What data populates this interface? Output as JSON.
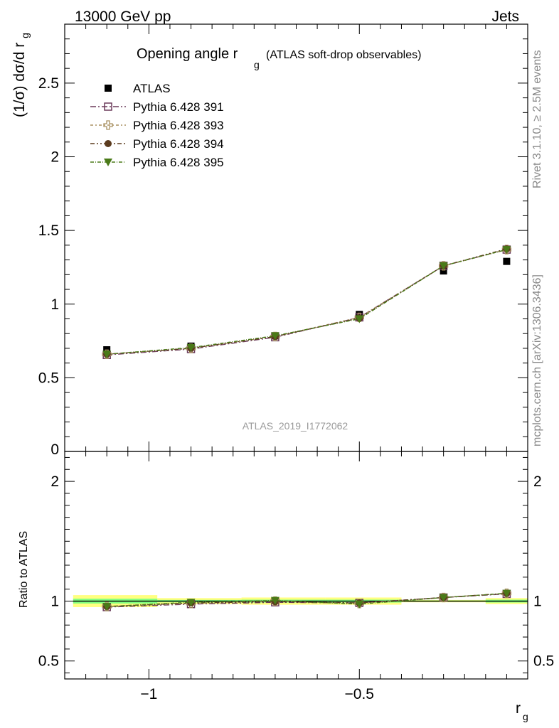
{
  "header": {
    "left": "13000 GeV pp",
    "right": "Jets"
  },
  "side": {
    "top": "Rivet 3.1.10, ≥ 2.5M events",
    "bottom": "mcplots.cern.ch [arXiv:1306.3436]"
  },
  "watermark": "ATLAS_2019_I1772062",
  "chart_data": [
    {
      "type": "scatter",
      "title": "Opening angle r",
      "title_sub": "g",
      "title_suffix": "(ATLAS soft-drop observables)",
      "ylabel": "(1/σ) dσ/d r",
      "ylabel_sub": "g",
      "xlim": [
        -1.2,
        -0.1
      ],
      "ylim": [
        0,
        2.9
      ],
      "yticks": [
        0.5,
        1,
        1.5,
        2,
        2.5
      ],
      "ytick_labels": [
        "0.5",
        "1",
        "1.5",
        "2",
        "2.5"
      ],
      "origin_label": "0",
      "x": [
        -1.1,
        -0.9,
        -0.7,
        -0.5,
        -0.3,
        -0.15
      ],
      "series": [
        {
          "name": "ATLAS",
          "color": "#000000",
          "marker": "filled-square",
          "values": [
            0.69,
            0.715,
            0.785,
            0.93,
            1.225,
            1.29
          ]
        },
        {
          "name": "Pythia 6.428 391",
          "color": "#6b3a5a",
          "marker": "open-square",
          "values": [
            0.655,
            0.695,
            0.775,
            0.91,
            1.26,
            1.37
          ]
        },
        {
          "name": "Pythia 6.428 393",
          "color": "#a89060",
          "marker": "open-cross",
          "values": [
            0.66,
            0.7,
            0.78,
            0.91,
            1.26,
            1.37
          ]
        },
        {
          "name": "Pythia 6.428 394",
          "color": "#5b3b1e",
          "marker": "filled-circle",
          "values": [
            0.66,
            0.7,
            0.78,
            0.905,
            1.26,
            1.375
          ]
        },
        {
          "name": "Pythia 6.428 395",
          "color": "#4a7a18",
          "marker": "filled-triangle-down",
          "values": [
            0.66,
            0.705,
            0.785,
            0.9,
            1.26,
            1.37
          ]
        }
      ],
      "legend": "top-left",
      "grid": false
    },
    {
      "type": "scatter",
      "ylabel": "Ratio to ATLAS",
      "xlabel": "r",
      "xlabel_sub": "g",
      "xlim": [
        -1.2,
        -0.1
      ],
      "ylim": [
        0.35,
        2.25
      ],
      "yticks": [
        0.5,
        1,
        2
      ],
      "ytick_labels": [
        "0.5",
        "1",
        "2"
      ],
      "xticks": [
        -1,
        -0.5
      ],
      "xtick_labels": [
        "−1",
        "−0.5"
      ],
      "bins": [
        {
          "lo": -1.18,
          "hi": -0.98,
          "inner": 0.02,
          "outer": 0.05
        },
        {
          "lo": -0.98,
          "hi": -0.78,
          "inner": 0.01,
          "outer": 0.025
        },
        {
          "lo": -0.78,
          "hi": -0.58,
          "inner": 0.012,
          "outer": 0.03
        },
        {
          "lo": -0.58,
          "hi": -0.4,
          "inner": 0.012,
          "outer": 0.03
        },
        {
          "lo": -0.4,
          "hi": -0.2,
          "inner": 0.005,
          "outer": 0.01
        },
        {
          "lo": -0.2,
          "hi": -0.1,
          "inner": 0.012,
          "outer": 0.025
        }
      ],
      "x": [
        -1.1,
        -0.9,
        -0.7,
        -0.5,
        -0.3,
        -0.15
      ],
      "series": [
        {
          "name": "Pythia 6.428 391",
          "color": "#6b3a5a",
          "marker": "open-square",
          "values": [
            0.95,
            0.975,
            0.99,
            0.985,
            1.03,
            1.06
          ]
        },
        {
          "name": "Pythia 6.428 393",
          "color": "#a89060",
          "marker": "open-cross",
          "values": [
            0.955,
            0.98,
            1.0,
            0.98,
            1.03,
            1.065
          ]
        },
        {
          "name": "Pythia 6.428 394",
          "color": "#5b3b1e",
          "marker": "filled-circle",
          "values": [
            0.955,
            0.985,
            0.995,
            0.985,
            1.03,
            1.065
          ]
        },
        {
          "name": "Pythia 6.428 395",
          "color": "#4a7a18",
          "marker": "filled-triangle-down",
          "values": [
            0.955,
            0.99,
            1.005,
            0.975,
            1.03,
            1.065
          ]
        }
      ]
    }
  ]
}
